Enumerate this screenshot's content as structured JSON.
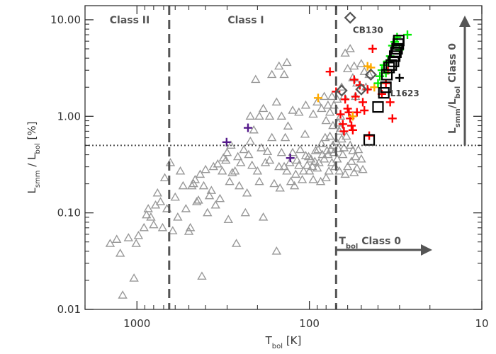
{
  "chart_data": {
    "type": "scatter",
    "title": "",
    "xlabel": "T",
    "xlabel_sub": "bol",
    "xlabel_unit": "[K]",
    "ylabel": "L",
    "ylabel_sub1": "smm",
    "ylabel_mid": " / L",
    "ylabel_sub2": "bol",
    "ylabel_unit": " [%]",
    "xscale": "log",
    "yscale": "log",
    "xlim": [
      2000,
      10
    ],
    "ylim": [
      0.01,
      14
    ],
    "x_ticks": [
      1000,
      100,
      10
    ],
    "x_tick_labels": [
      "1000",
      "100",
      "10"
    ],
    "y_ticks": [
      0.01,
      0.1,
      1,
      10
    ],
    "y_tick_labels": [
      "0.01",
      "0.10",
      "1.00",
      "10.00"
    ],
    "grid": false,
    "boundaries": {
      "class_ii_i_tbol": 650,
      "class_i_0_tbol": 70,
      "lsmm_class0_percent": 0.5
    },
    "region_labels": [
      "Class II",
      "Class I"
    ],
    "annotations": {
      "tbol_arrow_label": "T",
      "tbol_arrow_sub": "bol",
      "tbol_arrow_suffix": " Class 0",
      "lsmm_arrow_label": "L",
      "lsmm_arrow_sub1": "smm",
      "lsmm_arrow_mid": "/L",
      "lsmm_arrow_sub2": "bol",
      "lsmm_arrow_suffix": " Class 0"
    },
    "source_labels": [
      {
        "text": "CB130",
        "x": 56,
        "y": 7.8
      },
      {
        "text": "L1623",
        "x": 34,
        "y": 1.72
      }
    ],
    "series": [
      {
        "marker": "triangle",
        "color": "#999999",
        "points": [
          [
            1430,
            0.048
          ],
          [
            1310,
            0.053
          ],
          [
            1250,
            0.038
          ],
          [
            1210,
            0.014
          ],
          [
            1120,
            0.055
          ],
          [
            1040,
            0.021
          ],
          [
            1010,
            0.048
          ],
          [
            980,
            0.058
          ],
          [
            910,
            0.07
          ],
          [
            880,
            0.095
          ],
          [
            860,
            0.11
          ],
          [
            830,
            0.09
          ],
          [
            800,
            0.075
          ],
          [
            780,
            0.12
          ],
          [
            760,
            0.16
          ],
          [
            730,
            0.13
          ],
          [
            710,
            0.07
          ],
          [
            690,
            0.23
          ],
          [
            670,
            0.11
          ],
          [
            640,
            0.33
          ],
          [
            620,
            0.065
          ],
          [
            600,
            0.145
          ],
          [
            580,
            0.09
          ],
          [
            560,
            0.27
          ],
          [
            540,
            0.19
          ],
          [
            520,
            0.11
          ],
          [
            500,
            0.064
          ],
          [
            490,
            0.07
          ],
          [
            480,
            0.19
          ],
          [
            470,
            0.2
          ],
          [
            460,
            0.22
          ],
          [
            450,
            0.13
          ],
          [
            440,
            0.135
          ],
          [
            430,
            0.25
          ],
          [
            420,
            0.022
          ],
          [
            410,
            0.19
          ],
          [
            400,
            0.28
          ],
          [
            390,
            0.1
          ],
          [
            380,
            0.15
          ],
          [
            370,
            0.17
          ],
          [
            360,
            0.3
          ],
          [
            350,
            0.12
          ],
          [
            340,
            0.32
          ],
          [
            330,
            0.14
          ],
          [
            320,
            0.27
          ],
          [
            315,
            0.37
          ],
          [
            305,
            0.35
          ],
          [
            300,
            0.42
          ],
          [
            295,
            0.085
          ],
          [
            290,
            0.21
          ],
          [
            285,
            0.5
          ],
          [
            280,
            0.26
          ],
          [
            270,
            0.27
          ],
          [
            265,
            0.048
          ],
          [
            260,
            0.38
          ],
          [
            255,
            0.19
          ],
          [
            250,
            0.33
          ],
          [
            240,
            0.45
          ],
          [
            235,
            0.1
          ],
          [
            230,
            0.16
          ],
          [
            225,
            0.4
          ],
          [
            220,
            0.55
          ],
          [
            215,
            0.31
          ],
          [
            210,
            0.72
          ],
          [
            205,
            2.4
          ],
          [
            200,
            0.27
          ],
          [
            195,
            0.21
          ],
          [
            190,
            0.47
          ],
          [
            185,
            0.09
          ],
          [
            180,
            0.33
          ],
          [
            175,
            0.43
          ],
          [
            170,
            0.35
          ],
          [
            165,
            0.6
          ],
          [
            160,
            0.2
          ],
          [
            155,
            0.04
          ],
          [
            150,
            0.3
          ],
          [
            148,
            0.18
          ],
          [
            145,
            0.42
          ],
          [
            140,
            0.3
          ],
          [
            138,
            0.6
          ],
          [
            135,
            0.27
          ],
          [
            133,
            0.79
          ],
          [
            130,
            0.33
          ],
          [
            128,
            0.21
          ],
          [
            125,
            0.42
          ],
          [
            122,
            0.19
          ],
          [
            120,
            0.25
          ],
          [
            118,
            0.35
          ],
          [
            115,
            0.31
          ],
          [
            113,
            0.45
          ],
          [
            110,
            0.22
          ],
          [
            108,
            0.27
          ],
          [
            106,
            0.65
          ],
          [
            105,
            0.39
          ],
          [
            103,
            0.31
          ],
          [
            101,
            0.38
          ],
          [
            100,
            0.27
          ],
          [
            98,
            0.36
          ],
          [
            96,
            0.3
          ],
          [
            95,
            0.22
          ],
          [
            93,
            0.34
          ],
          [
            92,
            0.44
          ],
          [
            90,
            0.29
          ],
          [
            89,
            0.45
          ],
          [
            88,
            0.33
          ],
          [
            86,
            0.21
          ],
          [
            85,
            0.52
          ],
          [
            84,
            0.4
          ],
          [
            82,
            0.36
          ],
          [
            81,
            0.6
          ],
          [
            80,
            0.23
          ],
          [
            79,
            0.44
          ],
          [
            78,
            0.4
          ],
          [
            77,
            0.27
          ],
          [
            76,
            0.62
          ],
          [
            75,
            0.45
          ],
          [
            74,
            0.33
          ],
          [
            73,
            0.5
          ],
          [
            72,
            0.42
          ],
          [
            71,
            0.3
          ],
          [
            70,
            0.55
          ],
          [
            69,
            0.36
          ],
          [
            68,
            0.46
          ],
          [
            67,
            0.27
          ],
          [
            66,
            0.75
          ],
          [
            65,
            0.58
          ],
          [
            64,
            0.4
          ],
          [
            63,
            0.47
          ],
          [
            62,
            0.25
          ],
          [
            61,
            0.62
          ],
          [
            60,
            0.3
          ],
          [
            58,
            0.5
          ],
          [
            57,
            0.34
          ],
          [
            56,
            0.44
          ],
          [
            55,
            0.26
          ],
          [
            54,
            0.38
          ],
          [
            53,
            0.29
          ],
          [
            52,
            0.45
          ],
          [
            50,
            0.36
          ],
          [
            49,
            0.28
          ],
          [
            195,
            1.0
          ],
          [
            220,
            1.0
          ],
          [
            185,
            1.2
          ],
          [
            170,
            1.0
          ],
          [
            165,
            2.7
          ],
          [
            155,
            1.4
          ],
          [
            150,
            3.3
          ],
          [
            145,
            1.0
          ],
          [
            140,
            2.7
          ],
          [
            135,
            3.6
          ],
          [
            125,
            1.15
          ],
          [
            115,
            1.1
          ],
          [
            105,
            1.3
          ],
          [
            95,
            1.05
          ],
          [
            90,
            1.4
          ],
          [
            85,
            1.2
          ],
          [
            82,
            1.6
          ],
          [
            80,
            0.9
          ],
          [
            78,
            1.3
          ],
          [
            76,
            1.1
          ],
          [
            74,
            1.6
          ],
          [
            73,
            0.8
          ],
          [
            72,
            1.3
          ],
          [
            69,
            1.5
          ],
          [
            68,
            0.85
          ],
          [
            67,
            0.7
          ],
          [
            66,
            1.0
          ],
          [
            65,
            2.0
          ],
          [
            63,
            1.6
          ],
          [
            62,
            4.5
          ],
          [
            60,
            3.1
          ],
          [
            58,
            5.0
          ],
          [
            56,
            2.5
          ],
          [
            55,
            3.3
          ],
          [
            54,
            1.6
          ],
          [
            53,
            2.2
          ],
          [
            50,
            3.5
          ],
          [
            48,
            2.9
          ],
          [
            47,
            2.0
          ],
          [
            45,
            2.7
          ]
        ]
      },
      {
        "marker": "plus",
        "color": "#ff0000",
        "points": [
          [
            76,
            2.9
          ],
          [
            70,
            1.8
          ],
          [
            66,
            1.05
          ],
          [
            64,
            0.83
          ],
          [
            63,
            0.7
          ],
          [
            62,
            1.5
          ],
          [
            60,
            1.2
          ],
          [
            59,
            1.1
          ],
          [
            58,
            0.95
          ],
          [
            57,
            0.8
          ],
          [
            56,
            0.72
          ],
          [
            55,
            2.4
          ],
          [
            54,
            1.6
          ],
          [
            53,
            1.1
          ],
          [
            51,
            2.1
          ],
          [
            49,
            1.4
          ],
          [
            48,
            1.15
          ],
          [
            46,
            1.9
          ],
          [
            45,
            0.63
          ],
          [
            43,
            5.0
          ],
          [
            38,
            1.7
          ],
          [
            36,
            2.2
          ],
          [
            35,
            3.0
          ],
          [
            34,
            1.4
          ],
          [
            33,
            0.95
          ]
        ]
      },
      {
        "marker": "plus",
        "color": "#ffaa00",
        "points": [
          [
            89,
            1.55
          ],
          [
            56,
            1.0
          ],
          [
            46,
            3.3
          ],
          [
            44,
            3.2
          ],
          [
            42,
            2.0
          ]
        ]
      },
      {
        "marker": "plus",
        "color": "#00ee00",
        "points": [
          [
            40,
            2.2
          ],
          [
            39,
            2.6
          ],
          [
            38,
            3.0
          ],
          [
            37,
            3.4
          ],
          [
            36,
            2.8
          ],
          [
            35,
            3.7
          ],
          [
            34,
            4.2
          ],
          [
            33,
            5.4
          ],
          [
            32,
            5.9
          ],
          [
            31,
            6.6
          ],
          [
            30,
            4.9
          ],
          [
            27,
            7.0
          ]
        ]
      },
      {
        "marker": "plus",
        "color": "#000000",
        "points": [
          [
            30,
            2.5
          ]
        ]
      },
      {
        "marker": "plus",
        "color": "#551a8b",
        "points": [
          [
            302,
            0.54
          ],
          [
            227,
            0.76
          ],
          [
            129,
            0.37
          ]
        ]
      },
      {
        "marker": "square",
        "color": "#000000",
        "points": [
          [
            45,
            0.57
          ],
          [
            40,
            1.25
          ],
          [
            37,
            1.75
          ],
          [
            36,
            2.0
          ],
          [
            35.5,
            2.7
          ],
          [
            34.5,
            3.2
          ],
          [
            33.5,
            3.4
          ],
          [
            32.5,
            3.7
          ],
          [
            32,
            4.2
          ],
          [
            31.5,
            4.6
          ],
          [
            31,
            5.0
          ],
          [
            30.5,
            5.6
          ],
          [
            30.3,
            6.1
          ]
        ]
      },
      {
        "marker": "diamond",
        "color": "#555555",
        "points": [
          [
            58,
            10.5
          ],
          [
            65,
            1.85
          ],
          [
            50,
            1.9
          ],
          [
            44,
            2.7
          ]
        ]
      }
    ]
  }
}
